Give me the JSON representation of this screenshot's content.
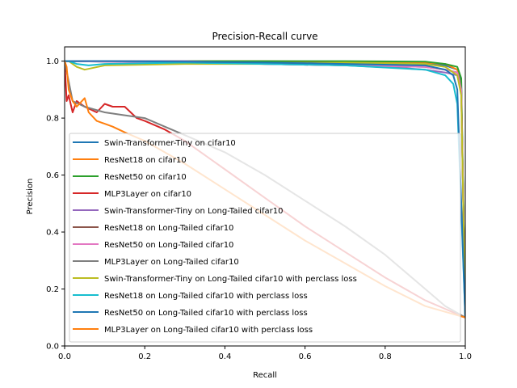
{
  "chart_data": {
    "type": "line",
    "title": "Precision-Recall curve",
    "xlabel": "Recall",
    "ylabel": "Precision",
    "xlim": [
      0,
      1
    ],
    "ylim": [
      0,
      1.05
    ],
    "xticks": [
      0.0,
      0.2,
      0.4,
      0.6,
      0.8,
      1.0
    ],
    "yticks": [
      0.0,
      0.2,
      0.4,
      0.6,
      0.8,
      1.0
    ],
    "xtick_labels": [
      "0.0",
      "0.2",
      "0.4",
      "0.6",
      "0.8",
      "1.0"
    ],
    "ytick_labels": [
      "0.0",
      "0.2",
      "0.4",
      "0.6",
      "0.8",
      "1.0"
    ],
    "grid": false,
    "legend_position": "center",
    "series": [
      {
        "name": "Swin-Transformer-Tiny on cifar10",
        "color": "#1f77b4",
        "x": [
          0,
          0.01,
          0.1,
          0.3,
          0.5,
          0.7,
          0.9,
          0.95,
          0.98,
          0.99,
          1.0
        ],
        "y": [
          1.0,
          1.0,
          1.0,
          1.0,
          1.0,
          0.995,
          0.99,
          0.985,
          0.97,
          0.93,
          0.1
        ]
      },
      {
        "name": "ResNet18 on cifar10",
        "color": "#ff7f0e",
        "x": [
          0,
          0.01,
          0.1,
          0.3,
          0.5,
          0.7,
          0.9,
          0.95,
          0.98,
          0.99,
          1.0
        ],
        "y": [
          1.0,
          1.0,
          1.0,
          1.0,
          1.0,
          0.998,
          0.995,
          0.99,
          0.97,
          0.9,
          0.1
        ]
      },
      {
        "name": "ResNet50 on cifar10",
        "color": "#2ca02c",
        "x": [
          0,
          0.01,
          0.1,
          0.3,
          0.5,
          0.7,
          0.9,
          0.95,
          0.98,
          0.99,
          1.0
        ],
        "y": [
          1.0,
          1.0,
          1.0,
          1.0,
          1.0,
          1.0,
          0.998,
          0.99,
          0.98,
          0.94,
          0.1
        ]
      },
      {
        "name": "MLP3Layer on cifar10",
        "color": "#d62728",
        "x": [
          0,
          0.005,
          0.01,
          0.02,
          0.03,
          0.05,
          0.08,
          0.1,
          0.12,
          0.15,
          0.18,
          0.2,
          0.25,
          0.3,
          0.4,
          0.5,
          0.6,
          0.7,
          0.8,
          0.9,
          1.0
        ],
        "y": [
          1.0,
          0.86,
          0.88,
          0.82,
          0.86,
          0.84,
          0.82,
          0.85,
          0.84,
          0.84,
          0.8,
          0.79,
          0.76,
          0.72,
          0.62,
          0.52,
          0.42,
          0.33,
          0.24,
          0.16,
          0.1
        ]
      },
      {
        "name": "Swin-Transformer-Tiny on Long-Tailed cifar10",
        "color": "#9467bd",
        "x": [
          0,
          0.01,
          0.1,
          0.3,
          0.5,
          0.7,
          0.85,
          0.9,
          0.95,
          0.98,
          0.99,
          1.0
        ],
        "y": [
          1.0,
          1.0,
          1.0,
          1.0,
          0.99,
          0.985,
          0.975,
          0.97,
          0.96,
          0.95,
          0.9,
          0.1
        ]
      },
      {
        "name": "ResNet18 on Long-Tailed cifar10",
        "color": "#8c564b",
        "x": [
          0,
          0.01,
          0.1,
          0.3,
          0.5,
          0.7,
          0.9,
          0.95,
          0.98,
          0.99,
          1.0
        ],
        "y": [
          1.0,
          1.0,
          0.998,
          0.995,
          0.99,
          0.985,
          0.98,
          0.97,
          0.96,
          0.9,
          0.1
        ]
      },
      {
        "name": "ResNet50 on Long-Tailed cifar10",
        "color": "#e377c2",
        "x": [
          0,
          0.01,
          0.1,
          0.3,
          0.5,
          0.7,
          0.9,
          0.95,
          0.98,
          0.99,
          1.0
        ],
        "y": [
          1.0,
          1.0,
          0.998,
          0.995,
          0.99,
          0.985,
          0.98,
          0.97,
          0.96,
          0.9,
          0.1
        ]
      },
      {
        "name": "MLP3Layer on Long-Tailed cifar10",
        "color": "#7f7f7f",
        "x": [
          0,
          0.02,
          0.05,
          0.1,
          0.15,
          0.2,
          0.25,
          0.3,
          0.35,
          0.4,
          0.5,
          0.6,
          0.7,
          0.8,
          0.9,
          0.95,
          1.0
        ],
        "y": [
          1.0,
          0.86,
          0.84,
          0.82,
          0.81,
          0.8,
          0.77,
          0.74,
          0.71,
          0.68,
          0.6,
          0.51,
          0.42,
          0.32,
          0.2,
          0.14,
          0.1
        ]
      },
      {
        "name": "Swin-Transformer-Tiny on Long-Tailed cifar10 with perclass loss",
        "color": "#bcbd22",
        "x": [
          0,
          0.01,
          0.03,
          0.05,
          0.1,
          0.3,
          0.5,
          0.7,
          0.9,
          0.95,
          0.98,
          0.99,
          1.0
        ],
        "y": [
          1.0,
          1.0,
          0.98,
          0.97,
          0.985,
          0.99,
          0.99,
          0.995,
          0.99,
          0.98,
          0.95,
          0.88,
          0.1
        ]
      },
      {
        "name": "ResNet18 on Long-Tailed cifar10 with perclass loss",
        "color": "#17becf",
        "x": [
          0,
          0.01,
          0.03,
          0.06,
          0.1,
          0.3,
          0.5,
          0.7,
          0.9,
          0.95,
          0.97,
          0.98,
          1.0
        ],
        "y": [
          1.0,
          1.0,
          0.99,
          0.985,
          0.99,
          0.995,
          0.99,
          0.985,
          0.97,
          0.95,
          0.92,
          0.85,
          0.1
        ]
      },
      {
        "name": "ResNet50 on Long-Tailed cifar10 with perclass loss",
        "color": "#1f77b4",
        "x": [
          0,
          0.01,
          0.1,
          0.3,
          0.5,
          0.7,
          0.9,
          0.95,
          0.97,
          0.98,
          1.0
        ],
        "y": [
          1.0,
          1.0,
          1.0,
          0.998,
          0.995,
          0.99,
          0.985,
          0.97,
          0.95,
          0.9,
          0.1
        ]
      },
      {
        "name": "MLP3Layer on Long-Tailed cifar10 with perclass loss",
        "color": "#ff7f0e",
        "x": [
          0,
          0.005,
          0.01,
          0.02,
          0.03,
          0.05,
          0.06,
          0.08,
          0.1,
          0.12,
          0.15,
          0.2,
          0.25,
          0.3,
          0.4,
          0.5,
          0.6,
          0.7,
          0.8,
          0.9,
          1.0
        ],
        "y": [
          1.0,
          0.98,
          0.9,
          0.86,
          0.84,
          0.87,
          0.82,
          0.79,
          0.78,
          0.77,
          0.75,
          0.72,
          0.68,
          0.64,
          0.55,
          0.46,
          0.37,
          0.29,
          0.21,
          0.14,
          0.1
        ]
      }
    ]
  }
}
